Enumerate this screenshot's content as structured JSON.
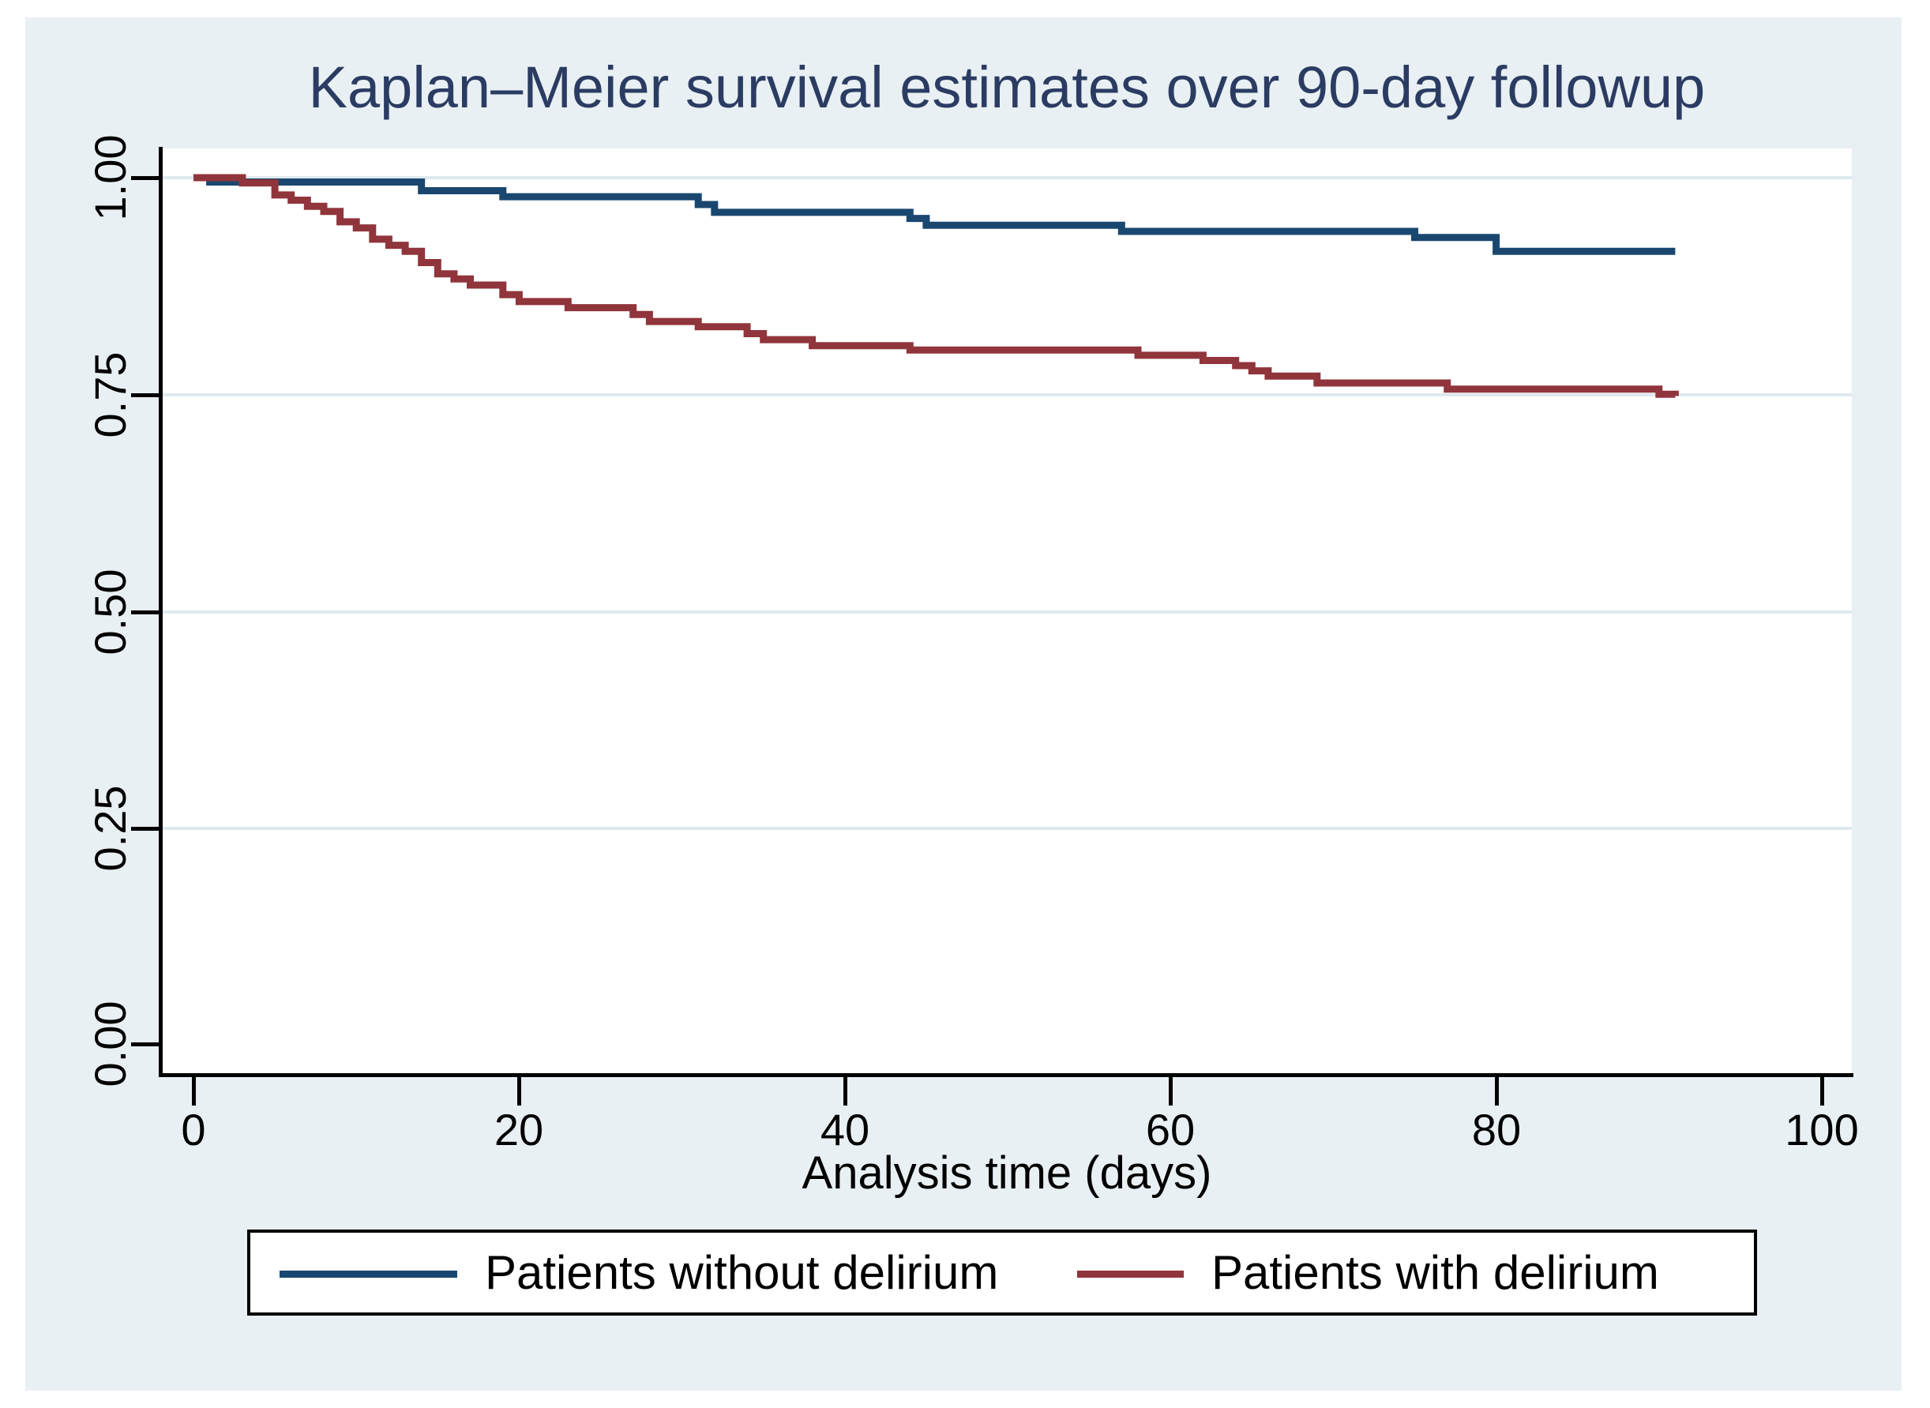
{
  "title": "Kaplan–Meier survival estimates over 90-day followup",
  "colors": {
    "graph_background": "#e9f0f3",
    "plot_background": "#ffffff",
    "gridline": "#dfeaee",
    "title_text": "#2b3c63",
    "series_without_delirium": "#1a476f",
    "series_with_delirium": "#90353b"
  },
  "chart_data": {
    "type": "line",
    "subtype": "kaplan-meier-step",
    "title": "Kaplan–Meier survival estimates over 90-day followup",
    "xlabel": "Analysis time (days)",
    "ylabel": "",
    "xlim": [
      0,
      100
    ],
    "ylim": [
      0.0,
      1.0
    ],
    "x_ticks": [
      0,
      20,
      40,
      60,
      80,
      100
    ],
    "y_tick_labels": [
      "0.00",
      "0.25",
      "0.50",
      "0.75",
      "1.00"
    ],
    "grid": "horizontal gridlines at 0.25, 0.50, 0.75, 1.00",
    "legend_position": "bottom",
    "followup_end_day": 91,
    "series": [
      {
        "name": "Patients without delirium",
        "color": "#1a476f",
        "points": [
          [
            0,
            1.0
          ],
          [
            1,
            0.995
          ],
          [
            14,
            0.985
          ],
          [
            19,
            0.978
          ],
          [
            31,
            0.969
          ],
          [
            32,
            0.96
          ],
          [
            44,
            0.953
          ],
          [
            45,
            0.945
          ],
          [
            57,
            0.938
          ],
          [
            75,
            0.931
          ],
          [
            80,
            0.915
          ],
          [
            91,
            0.915
          ]
        ]
      },
      {
        "name": "Patients with delirium",
        "color": "#90353b",
        "points": [
          [
            0,
            1.0
          ],
          [
            3,
            0.994
          ],
          [
            5,
            0.98
          ],
          [
            6,
            0.974
          ],
          [
            7,
            0.967
          ],
          [
            8,
            0.961
          ],
          [
            9,
            0.949
          ],
          [
            10,
            0.942
          ],
          [
            11,
            0.929
          ],
          [
            12,
            0.922
          ],
          [
            13,
            0.915
          ],
          [
            14,
            0.902
          ],
          [
            15,
            0.889
          ],
          [
            16,
            0.883
          ],
          [
            17,
            0.876
          ],
          [
            19,
            0.865
          ],
          [
            20,
            0.857
          ],
          [
            23,
            0.85
          ],
          [
            27,
            0.842
          ],
          [
            28,
            0.834
          ],
          [
            31,
            0.828
          ],
          [
            34,
            0.82
          ],
          [
            35,
            0.813
          ],
          [
            38,
            0.806
          ],
          [
            44,
            0.801
          ],
          [
            58,
            0.795
          ],
          [
            62,
            0.789
          ],
          [
            64,
            0.783
          ],
          [
            65,
            0.777
          ],
          [
            66,
            0.771
          ],
          [
            69,
            0.763
          ],
          [
            77,
            0.756
          ],
          [
            90,
            0.75
          ],
          [
            91,
            0.748
          ]
        ]
      }
    ]
  },
  "legend": {
    "items": [
      {
        "label": "Patients without delirium",
        "color": "#1a476f"
      },
      {
        "label": "Patients with delirium",
        "color": "#90353b"
      }
    ]
  }
}
